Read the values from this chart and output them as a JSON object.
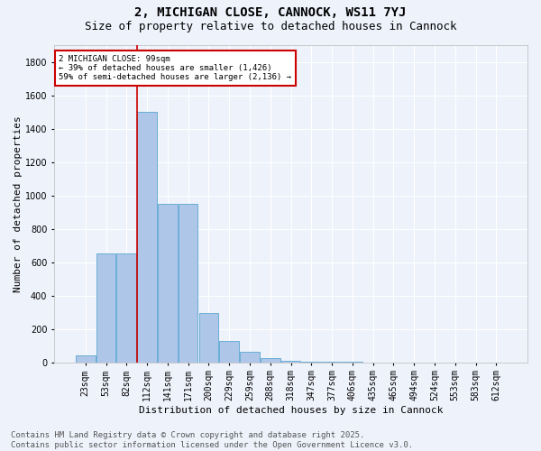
{
  "title1": "2, MICHIGAN CLOSE, CANNOCK, WS11 7YJ",
  "title2": "Size of property relative to detached houses in Cannock",
  "xlabel": "Distribution of detached houses by size in Cannock",
  "ylabel": "Number of detached properties",
  "categories": [
    "23sqm",
    "53sqm",
    "82sqm",
    "112sqm",
    "141sqm",
    "171sqm",
    "200sqm",
    "229sqm",
    "259sqm",
    "288sqm",
    "318sqm",
    "347sqm",
    "377sqm",
    "406sqm",
    "435sqm",
    "465sqm",
    "494sqm",
    "524sqm",
    "553sqm",
    "583sqm",
    "612sqm"
  ],
  "values": [
    40,
    650,
    650,
    1500,
    950,
    950,
    295,
    130,
    60,
    25,
    10,
    5,
    2,
    1,
    0,
    0,
    0,
    0,
    0,
    0,
    0
  ],
  "bar_color": "#aec6e8",
  "bar_edge_color": "#6aaed6",
  "background_color": "#eef2fb",
  "grid_color": "#ffffff",
  "vline_x_index": 2.5,
  "vline_color": "#cc0000",
  "annotation_text": "2 MICHIGAN CLOSE: 99sqm\n← 39% of detached houses are smaller (1,426)\n59% of semi-detached houses are larger (2,136) →",
  "annotation_box_color": "#cc0000",
  "ylim": [
    0,
    1900
  ],
  "yticks": [
    0,
    200,
    400,
    600,
    800,
    1000,
    1200,
    1400,
    1600,
    1800
  ],
  "footer_text": "Contains HM Land Registry data © Crown copyright and database right 2025.\nContains public sector information licensed under the Open Government Licence v3.0.",
  "title_fontsize": 10,
  "subtitle_fontsize": 9,
  "label_fontsize": 8,
  "tick_fontsize": 7,
  "footer_fontsize": 6.5
}
